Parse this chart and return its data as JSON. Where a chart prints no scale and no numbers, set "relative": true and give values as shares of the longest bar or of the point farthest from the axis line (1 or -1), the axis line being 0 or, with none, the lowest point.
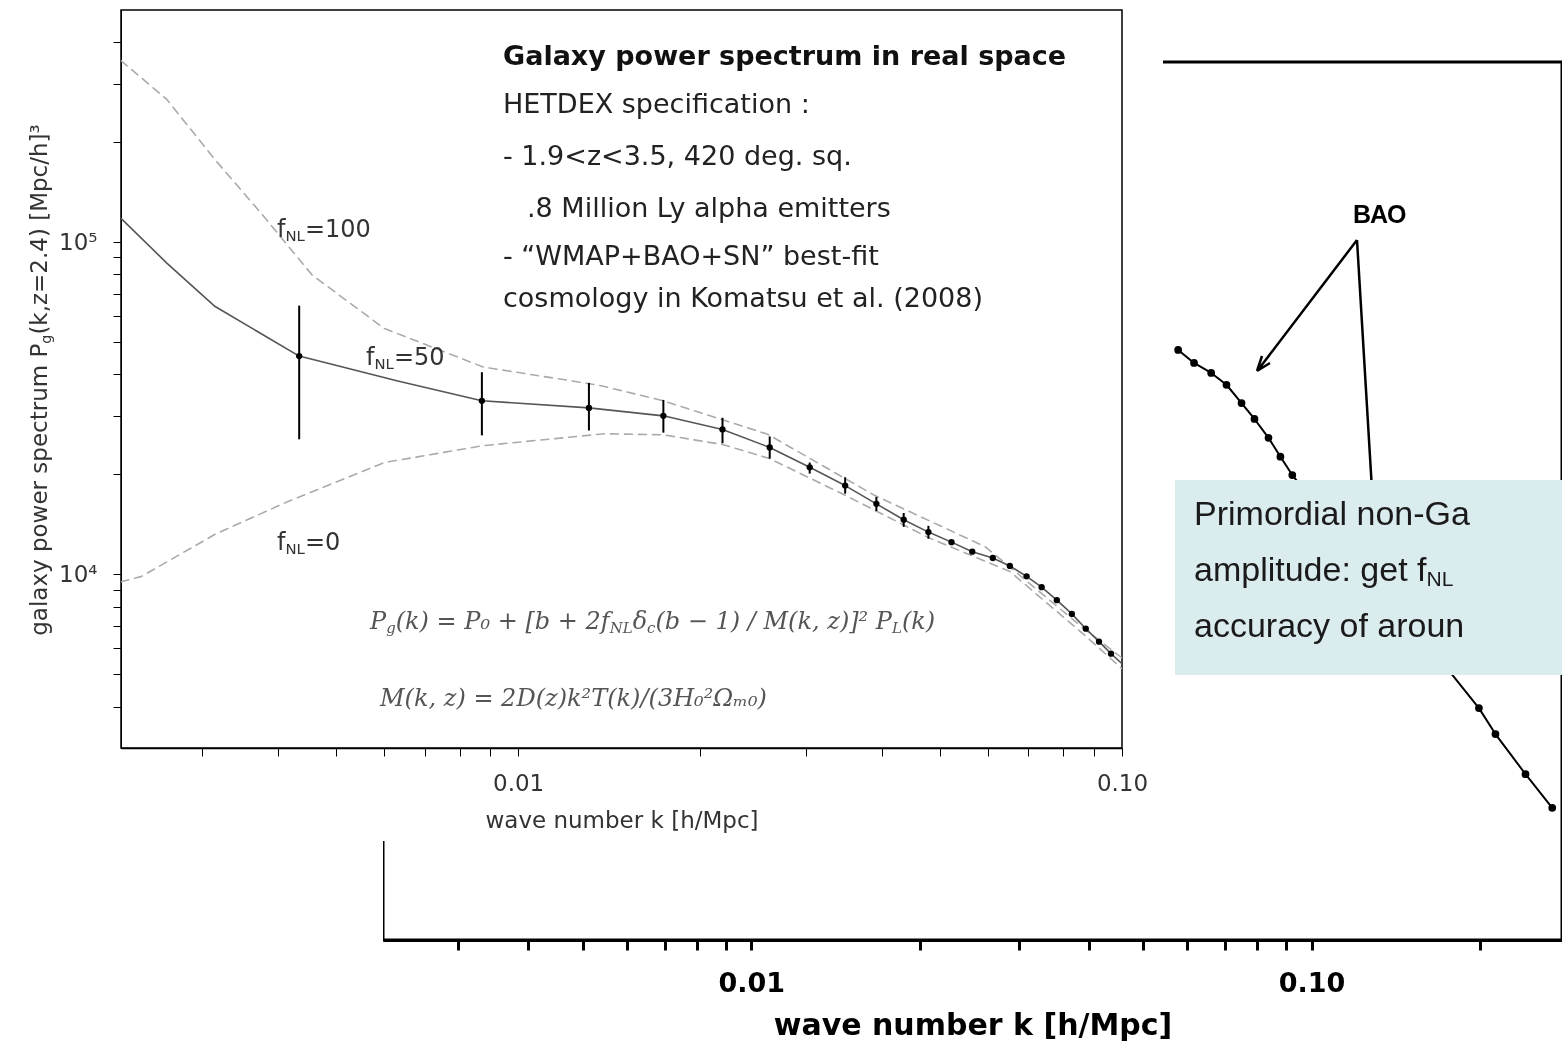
{
  "chart_data": [
    {
      "type": "line",
      "title": "Galaxy power spectrum in real space",
      "xlabel": "wave number k [h/Mpc]",
      "ylabel": "galaxy power spectrum P$_{g}$(k,z=2.4) [Mpc/h]³",
      "log": "xy",
      "grid": false,
      "xlim": [
        0.0022,
        0.1
      ],
      "ylim": [
        3000,
        500000
      ],
      "xticks": [
        {
          "value": 0.003,
          "label": null
        },
        {
          "value": 0.004,
          "label": null
        },
        {
          "value": 0.005,
          "label": null
        },
        {
          "value": 0.006,
          "label": null
        },
        {
          "value": 0.007,
          "label": null
        },
        {
          "value": 0.008,
          "label": null
        },
        {
          "value": 0.009,
          "label": null
        },
        0.01,
        {
          "value": 0.02,
          "label": null
        },
        {
          "value": 0.03,
          "label": null
        },
        {
          "value": 0.04,
          "label": null
        },
        {
          "value": 0.05,
          "label": null
        },
        {
          "value": 0.06,
          "label": null
        },
        {
          "value": 0.07,
          "label": null
        },
        {
          "value": 0.08,
          "label": null
        },
        {
          "value": 0.09,
          "label": null
        },
        {
          "value": 0.1,
          "label": "0.10"
        }
      ],
      "yticks": [
        {
          "value": 4000,
          "label": null
        },
        {
          "value": 5000,
          "label": null
        },
        {
          "value": 6000,
          "label": null
        },
        {
          "value": 7000,
          "label": null
        },
        {
          "value": 8000,
          "label": null
        },
        {
          "value": 9000,
          "label": null
        },
        {
          "value": 10000,
          "label": "10⁴"
        },
        {
          "value": 20000,
          "label": null
        },
        {
          "value": 30000,
          "label": null
        },
        {
          "value": 40000,
          "label": null
        },
        {
          "value": 50000,
          "label": null
        },
        {
          "value": 60000,
          "label": null
        },
        {
          "value": 70000,
          "label": null
        },
        {
          "value": 80000,
          "label": null
        },
        {
          "value": 90000,
          "label": null
        },
        {
          "value": 100000,
          "label": "10⁵"
        },
        {
          "value": 200000,
          "label": null
        },
        {
          "value": 300000,
          "label": null
        },
        {
          "value": 400000,
          "label": null
        }
      ],
      "annotations": [
        "HETDEX specification :",
        "- 1.9<z<3.5, 420 deg. sq.",
        ".8 Million Ly alpha emitters",
        "- “WMAP+BAO+SN” best-fit",
        "cosmology in Komatsu et al. (2008)",
        "P$_{g}$(k) = P₀ + [b + 2f$_{NL}$δ$_{c}$(b − 1) / M(k, z)]² P$_{L}$(k)",
        "M(k, z) = 2D(z)k²T(k)/(3H₀²Ωₘ₀)"
      ],
      "series": [
        {
          "name": "f$_{NL}$=100",
          "line_style": "dashed",
          "color": "#aaaaaa",
          "x": [
            0.0022,
            0.00262,
            0.00315,
            0.0038,
            0.00456,
            0.006,
            0.00875,
            0.0136,
            0.0174,
            0.0259,
            0.0389,
            0.0594,
            0.0862,
            0.1
          ],
          "values": [
            352000,
            269000,
            177000,
            119000,
            79600,
            55000,
            42100,
            37100,
            33300,
            26400,
            17300,
            12100,
            6900,
            5600
          ]
        },
        {
          "name": "f$_{NL}$=50",
          "line_style": "solid",
          "color": "#555555",
          "x": [
            0.0022,
            0.00262,
            0.00315,
            0.00434,
            0.00632,
            0.00871,
            0.0131,
            0.0174,
            0.0218,
            0.0261,
            0.0304,
            0.0348,
            0.0392,
            0.0435,
            0.0478,
            0.0522,
            0.0565,
            0.0611,
            0.0652,
            0.0695,
            0.0736,
            0.078,
            0.0826,
            0.0871,
            0.0916,
            0.0959,
            0.1
          ],
          "values": [
            118000,
            86500,
            64000,
            45400,
            38200,
            33300,
            31700,
            30000,
            27300,
            24100,
            21000,
            18500,
            16300,
            14600,
            13400,
            12500,
            11700,
            11200,
            10600,
            9860,
            9150,
            8360,
            7600,
            6860,
            6270,
            5770,
            5380
          ]
        },
        {
          "name": "f$_{NL}$=0",
          "line_style": "dashed",
          "color": "#aaaaaa",
          "x": [
            0.0022,
            0.00238,
            0.00315,
            0.00417,
            0.006,
            0.00875,
            0.0139,
            0.0174,
            0.0218,
            0.0261,
            0.0348,
            0.0478,
            0.0652,
            0.0862,
            0.1
          ],
          "values": [
            9500,
            9860,
            13200,
            16600,
            21700,
            24400,
            26500,
            26300,
            24600,
            22300,
            17300,
            12900,
            10200,
            6620,
            5200
          ]
        },
        {
          "type": "scatter",
          "marker": "circle",
          "color": "#000000",
          "x": [
            0.00434,
            0.00871,
            0.0131,
            0.0174,
            0.0218,
            0.0261,
            0.0304,
            0.0348,
            0.0392,
            0.0435,
            0.0478,
            0.0522,
            0.0565,
            0.0611,
            0.0652,
            0.0695,
            0.0736,
            0.078,
            0.0826,
            0.0871,
            0.0916,
            0.0959
          ],
          "values": [
            45400,
            33300,
            31700,
            30000,
            27300,
            24100,
            21000,
            18500,
            16300,
            14600,
            13400,
            12500,
            11700,
            11200,
            10600,
            9860,
            9150,
            8360,
            7600,
            6860,
            6270,
            5770
          ],
          "errors": [
            [
              25500,
              64400
            ],
            [
              26200,
              40600
            ],
            [
              27100,
              37700
            ],
            [
              26700,
              33500
            ],
            [
              24800,
              29600
            ],
            [
              22300,
              26000
            ],
            [
              20100,
              21700
            ],
            [
              17500,
              19600
            ],
            [
              15500,
              17100
            ],
            [
              13900,
              15300
            ],
            [
              12800,
              14000
            ],
            null,
            null,
            null,
            null,
            null,
            null,
            null,
            null,
            null,
            null,
            null
          ]
        }
      ]
    },
    {
      "type": "line",
      "relative": true,
      "xlabel": "wave number k [h/Mpc]",
      "log": "x",
      "grid": false,
      "marker": "circle",
      "tick_labels": "x",
      "xlim": [
        0.0022,
        0.28
      ],
      "xticks": [
        {
          "value": 0.003,
          "label": null
        },
        {
          "value": 0.004,
          "label": null
        },
        {
          "value": 0.005,
          "label": null
        },
        {
          "value": 0.006,
          "label": null
        },
        {
          "value": 0.007,
          "label": null
        },
        {
          "value": 0.008,
          "label": null
        },
        {
          "value": 0.009,
          "label": null
        },
        0.01,
        {
          "value": 0.02,
          "label": null
        },
        {
          "value": 0.03,
          "label": null
        },
        {
          "value": 0.04,
          "label": null
        },
        {
          "value": 0.05,
          "label": null
        },
        {
          "value": 0.06,
          "label": null
        },
        {
          "value": 0.07,
          "label": null
        },
        {
          "value": 0.08,
          "label": null
        },
        {
          "value": 0.09,
          "label": null
        },
        {
          "value": 0.1,
          "label": "0.10"
        },
        {
          "value": 0.2,
          "label": null
        }
      ],
      "annotations": [
        "BAO",
        "Primordial non-Ga",
        "amplitude: get f$_{NL}$",
        "accuracy of aroun"
      ],
      "series": [
        {
          "color": "#000000",
          "x": [
            0.0578,
            0.0617,
            0.0662,
            0.0705,
            0.075,
            0.0791,
            0.0838,
            0.088,
            0.0924,
            0.178,
            0.199,
            0.213,
            0.241,
            0.269
          ],
          "values": [
            1,
            0.978,
            0.961,
            0.941,
            0.91,
            0.883,
            0.851,
            0.819,
            0.788,
            null,
            0.393,
            0.349,
            0.281,
            0.224
          ]
        }
      ]
    }
  ]
}
